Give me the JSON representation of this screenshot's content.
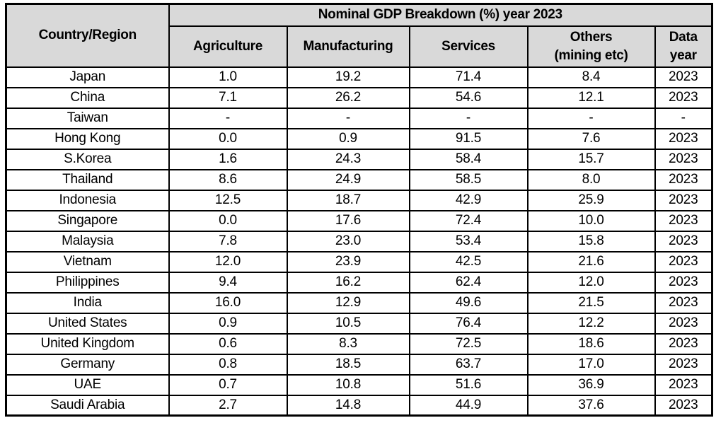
{
  "colors": {
    "header_bg": "#d9d9d9",
    "body_bg": "#ffffff",
    "border": "#000000",
    "text": "#000000"
  },
  "chart_data": {
    "type": "table",
    "title": "Nominal GDP Breakdown (%) year 2023",
    "corner_header": "Country/Region",
    "column_keys": [
      "agriculture",
      "manufacturing",
      "services",
      "others",
      "data-year"
    ],
    "column_headers": [
      [
        "Agriculture",
        ""
      ],
      [
        "Manufacturing",
        ""
      ],
      [
        "Services",
        ""
      ],
      [
        "Others",
        "(mining etc)"
      ],
      [
        "Data",
        "year"
      ]
    ],
    "columns_flat": [
      "Country/Region",
      "Agriculture",
      "Manufacturing",
      "Services",
      "Others (mining etc)",
      "Data year"
    ],
    "rows": [
      [
        "Japan",
        "1.0",
        "19.2",
        "71.4",
        "8.4",
        "2023"
      ],
      [
        "China",
        "7.1",
        "26.2",
        "54.6",
        "12.1",
        "2023"
      ],
      [
        "Taiwan",
        "-",
        "-",
        "-",
        "-",
        "-"
      ],
      [
        "Hong Kong",
        "0.0",
        "0.9",
        "91.5",
        "7.6",
        "2023"
      ],
      [
        "S.Korea",
        "1.6",
        "24.3",
        "58.4",
        "15.7",
        "2023"
      ],
      [
        "Thailand",
        "8.6",
        "24.9",
        "58.5",
        "8.0",
        "2023"
      ],
      [
        "Indonesia",
        "12.5",
        "18.7",
        "42.9",
        "25.9",
        "2023"
      ],
      [
        "Singapore",
        "0.0",
        "17.6",
        "72.4",
        "10.0",
        "2023"
      ],
      [
        "Malaysia",
        "7.8",
        "23.0",
        "53.4",
        "15.8",
        "2023"
      ],
      [
        "Vietnam",
        "12.0",
        "23.9",
        "42.5",
        "21.6",
        "2023"
      ],
      [
        "Philippines",
        "9.4",
        "16.2",
        "62.4",
        "12.0",
        "2023"
      ],
      [
        "India",
        "16.0",
        "12.9",
        "49.6",
        "21.5",
        "2023"
      ],
      [
        "United States",
        "0.9",
        "10.5",
        "76.4",
        "12.2",
        "2023"
      ],
      [
        "United Kingdom",
        "0.6",
        "8.3",
        "72.5",
        "18.6",
        "2023"
      ],
      [
        "Germany",
        "0.8",
        "18.5",
        "63.7",
        "17.0",
        "2023"
      ],
      [
        "UAE",
        "0.7",
        "10.8",
        "51.6",
        "36.9",
        "2023"
      ],
      [
        "Saudi Arabia",
        "2.7",
        "14.8",
        "44.9",
        "37.6",
        "2023"
      ]
    ]
  }
}
